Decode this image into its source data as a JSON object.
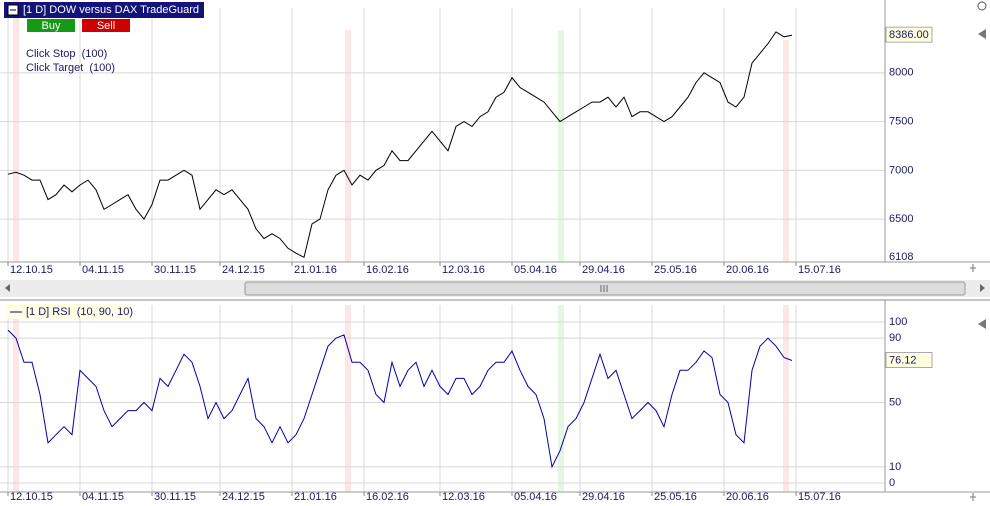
{
  "buttons": [
    "Buy",
    "Sell"
  ],
  "annotations": [
    "Click Stop  (100)",
    "Click Target  (100)"
  ],
  "chart_data": [
    {
      "type": "line",
      "title": "[1 D] DOW versus DAX TradeGuard",
      "x": [
        0,
        2,
        4,
        6,
        8,
        10,
        12,
        14,
        16,
        18,
        20,
        22,
        24,
        26,
        28,
        30,
        32,
        34,
        36,
        38,
        40,
        42,
        44,
        46,
        48,
        50,
        52,
        54,
        56,
        58,
        60,
        62,
        64,
        66,
        68,
        70,
        72,
        74,
        76,
        78,
        80,
        82,
        84,
        86,
        88,
        90,
        92,
        94,
        96,
        98,
        100,
        102,
        104,
        106,
        108,
        110,
        112,
        114,
        116,
        118,
        120,
        122,
        124,
        126,
        128,
        130,
        132,
        134,
        136,
        138,
        140,
        142,
        144,
        146,
        148,
        150,
        152,
        154,
        156,
        158,
        160,
        162,
        164,
        166,
        168,
        170,
        172,
        174,
        176,
        178,
        180,
        182,
        184,
        186,
        188,
        190,
        192,
        194,
        196
      ],
      "series": [
        {
          "color": "#000000",
          "values": [
            6960,
            6980,
            6950,
            6900,
            6900,
            6700,
            6750,
            6850,
            6780,
            6850,
            6900,
            6800,
            6600,
            6650,
            6700,
            6750,
            6600,
            6500,
            6650,
            6900,
            6900,
            6950,
            7000,
            6950,
            6600,
            6700,
            6800,
            6750,
            6800,
            6700,
            6600,
            6400,
            6300,
            6350,
            6300,
            6200,
            6150,
            6108,
            6450,
            6500,
            6800,
            6950,
            7000,
            6850,
            6950,
            6900,
            7000,
            7050,
            7200,
            7100,
            7100,
            7200,
            7300,
            7400,
            7300,
            7200,
            7450,
            7500,
            7450,
            7550,
            7600,
            7750,
            7800,
            7950,
            7850,
            7800,
            7750,
            7700,
            7600,
            7500,
            7550,
            7600,
            7650,
            7700,
            7700,
            7750,
            7650,
            7750,
            7550,
            7600,
            7600,
            7550,
            7500,
            7550,
            7650,
            7750,
            7900,
            8000,
            7950,
            7900,
            7700,
            7650,
            7750,
            8100,
            8200,
            8300,
            8420,
            8370,
            8386
          ]
        }
      ],
      "xlim": [
        -2,
        219.25
      ],
      "ylim": [
        6060,
        8665
      ],
      "xticks": [
        {
          "value": 0,
          "label": "12.10.15"
        },
        {
          "value": 18,
          "label": "04.11.15"
        },
        {
          "value": 36,
          "label": "30.11.15"
        },
        {
          "value": 53,
          "label": "24.12.15"
        },
        {
          "value": 71,
          "label": "21.01.16"
        },
        {
          "value": 89,
          "label": "16.02.16"
        },
        {
          "value": 108,
          "label": "12.03.16"
        },
        {
          "value": 126,
          "label": "05.04.16"
        },
        {
          "value": 143,
          "label": "29.04.16"
        },
        {
          "value": 161,
          "label": "25.05.16"
        },
        {
          "value": 179,
          "label": "20.06.16"
        },
        {
          "value": 197,
          "label": "15.07.16"
        }
      ],
      "yticks": [
        6500,
        7000,
        7500,
        8000
      ],
      "markers": [
        {
          "value": 6108
        },
        {
          "value": 8386,
          "label": "8386.00"
        }
      ],
      "grid": true
    },
    {
      "type": "line",
      "legend": "[1 D] RSI  (10, 90, 10)",
      "x": [
        0,
        2,
        4,
        6,
        8,
        10,
        12,
        14,
        16,
        18,
        20,
        22,
        24,
        26,
        28,
        30,
        32,
        34,
        36,
        38,
        40,
        42,
        44,
        46,
        48,
        50,
        52,
        54,
        56,
        58,
        60,
        62,
        64,
        66,
        68,
        70,
        72,
        74,
        76,
        78,
        80,
        82,
        84,
        86,
        88,
        90,
        92,
        94,
        96,
        98,
        100,
        102,
        104,
        106,
        108,
        110,
        112,
        114,
        116,
        118,
        120,
        122,
        124,
        126,
        128,
        130,
        132,
        134,
        136,
        138,
        140,
        142,
        144,
        146,
        148,
        150,
        152,
        154,
        156,
        158,
        160,
        162,
        164,
        166,
        168,
        170,
        172,
        174,
        176,
        178,
        180,
        182,
        184,
        186,
        188,
        190,
        192,
        194,
        196
      ],
      "series": [
        {
          "color": "#0000aa",
          "values": [
            95,
            90,
            75,
            75,
            55,
            25,
            30,
            35,
            30,
            70,
            65,
            60,
            45,
            35,
            40,
            45,
            45,
            50,
            45,
            65,
            60,
            70,
            80,
            75,
            60,
            40,
            50,
            40,
            45,
            55,
            65,
            40,
            35,
            25,
            35,
            25,
            30,
            40,
            55,
            70,
            85,
            90,
            92,
            75,
            75,
            70,
            55,
            50,
            75,
            60,
            70,
            75,
            60,
            70,
            60,
            55,
            65,
            65,
            55,
            60,
            70,
            75,
            75,
            82,
            70,
            60,
            55,
            40,
            10,
            20,
            35,
            40,
            50,
            65,
            80,
            65,
            70,
            55,
            40,
            45,
            50,
            45,
            35,
            55,
            70,
            70,
            75,
            82,
            78,
            55,
            50,
            30,
            25,
            70,
            85,
            90,
            85,
            78,
            76.12
          ]
        }
      ],
      "xlim": [
        -2,
        219.25
      ],
      "ylim": [
        -5.6,
        110.6
      ],
      "xticks": [
        {
          "value": 0,
          "label": "12.10.15"
        },
        {
          "value": 18,
          "label": "04.11.15"
        },
        {
          "value": 36,
          "label": "30.11.15"
        },
        {
          "value": 53,
          "label": "24.12.15"
        },
        {
          "value": 71,
          "label": "21.01.16"
        },
        {
          "value": 89,
          "label": "16.02.16"
        },
        {
          "value": 108,
          "label": "12.03.16"
        },
        {
          "value": 126,
          "label": "05.04.16"
        },
        {
          "value": 143,
          "label": "29.04.16"
        },
        {
          "value": 161,
          "label": "25.05.16"
        },
        {
          "value": 179,
          "label": "20.06.16"
        },
        {
          "value": 197,
          "label": "15.07.16"
        }
      ],
      "yticks": [
        0,
        10,
        50,
        90,
        100
      ],
      "markers": [
        {
          "value": 76.12
        }
      ],
      "grid": true
    }
  ]
}
